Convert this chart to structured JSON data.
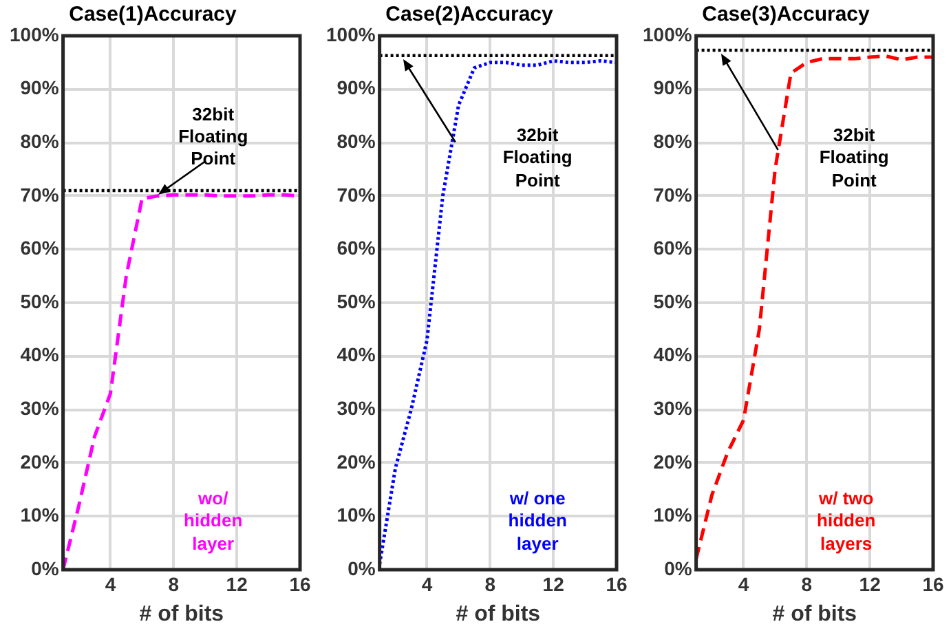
{
  "chart_data": [
    {
      "type": "line",
      "title": "Case(1)Accuracy",
      "xlabel": "# of bits",
      "x": [
        1,
        2,
        3,
        4,
        5,
        6,
        7,
        8,
        9,
        10,
        11,
        12,
        13,
        14,
        15,
        16
      ],
      "xlim": [
        1,
        16
      ],
      "xticks": [
        4,
        8,
        12,
        16
      ],
      "ylim": [
        0,
        100
      ],
      "yticks": [
        {
          "value": 0,
          "label": "0%"
        },
        {
          "value": 10,
          "label": "10%"
        },
        {
          "value": 20,
          "label": "20%"
        },
        {
          "value": 30,
          "label": "30%"
        },
        {
          "value": 40,
          "label": "40%"
        },
        {
          "value": 50,
          "label": "50%"
        },
        {
          "value": 60,
          "label": "60%"
        },
        {
          "value": 70,
          "label": "70%"
        },
        {
          "value": 80,
          "label": "80%"
        },
        {
          "value": 90,
          "label": "90%"
        },
        {
          "value": 100,
          "label": "100%"
        }
      ],
      "series": [
        {
          "name": "wo/\nhidden layer",
          "color": "#ff00ff",
          "line_style": "dashed",
          "values": [
            0,
            12,
            25,
            33,
            55,
            69.5,
            70,
            70.2,
            70.2,
            70.2,
            70,
            70,
            70,
            70.2,
            70.2,
            70
          ]
        }
      ],
      "ref_lines": [
        {
          "axis": "y",
          "value": 71,
          "label": "32bit\nFloating Point",
          "color": "#000000",
          "line_style": "dotted"
        }
      ],
      "grid": true,
      "legend": false,
      "marker": "none"
    },
    {
      "type": "line",
      "title": "Case(2)Accuracy",
      "xlabel": "# of bits",
      "x": [
        1,
        2,
        3,
        4,
        5,
        6,
        7,
        8,
        9,
        10,
        11,
        12,
        13,
        14,
        15,
        16
      ],
      "xlim": [
        1,
        16
      ],
      "xticks": [
        4,
        8,
        12,
        16
      ],
      "ylim": [
        0,
        100
      ],
      "yticks": [
        {
          "value": 0,
          "label": "0%"
        },
        {
          "value": 10,
          "label": "10%"
        },
        {
          "value": 20,
          "label": "20%"
        },
        {
          "value": 30,
          "label": "30%"
        },
        {
          "value": 40,
          "label": "40%"
        },
        {
          "value": 50,
          "label": "50%"
        },
        {
          "value": 60,
          "label": "60%"
        },
        {
          "value": 70,
          "label": "70%"
        },
        {
          "value": 80,
          "label": "80%"
        },
        {
          "value": 90,
          "label": "90%"
        },
        {
          "value": 100,
          "label": "100%"
        }
      ],
      "series": [
        {
          "name": "w/ one\nhidden layer",
          "color": "#0000ff",
          "line_style": "dotted",
          "values": [
            1,
            19,
            30,
            43,
            70,
            87,
            94,
            95,
            95,
            94.5,
            94.5,
            95.3,
            95,
            95,
            95.3,
            95
          ]
        }
      ],
      "ref_lines": [
        {
          "axis": "y",
          "value": 96.3,
          "label": "32bit\nFloating Point",
          "color": "#000000",
          "line_style": "dotted"
        }
      ],
      "grid": true,
      "legend": false,
      "marker": "none"
    },
    {
      "type": "line",
      "title": "Case(3)Accuracy",
      "xlabel": "# of bits",
      "x": [
        1,
        2,
        3,
        4,
        5,
        6,
        7,
        8,
        9,
        10,
        11,
        12,
        13,
        14,
        15,
        16
      ],
      "xlim": [
        1,
        16
      ],
      "xticks": [
        4,
        8,
        12,
        16
      ],
      "ylim": [
        0,
        100
      ],
      "yticks": [
        {
          "value": 0,
          "label": "0%"
        },
        {
          "value": 10,
          "label": "10%"
        },
        {
          "value": 20,
          "label": "20%"
        },
        {
          "value": 30,
          "label": "30%"
        },
        {
          "value": 40,
          "label": "40%"
        },
        {
          "value": 50,
          "label": "50%"
        },
        {
          "value": 60,
          "label": "60%"
        },
        {
          "value": 70,
          "label": "70%"
        },
        {
          "value": 80,
          "label": "80%"
        },
        {
          "value": 90,
          "label": "90%"
        },
        {
          "value": 100,
          "label": "100%"
        }
      ],
      "series": [
        {
          "name": "w/ two\nhidden layers",
          "color": "#ff0000",
          "line_style": "dashed",
          "values": [
            2,
            14,
            22,
            28,
            45,
            75,
            93,
            95,
            95.7,
            95.7,
            95.7,
            96,
            96.2,
            95.5,
            96,
            96
          ]
        }
      ],
      "ref_lines": [
        {
          "axis": "y",
          "value": 97.3,
          "label": "32bit\nFloating Point",
          "color": "#000000",
          "line_style": "dotted"
        }
      ],
      "grid": true,
      "legend": false,
      "marker": "none"
    }
  ]
}
